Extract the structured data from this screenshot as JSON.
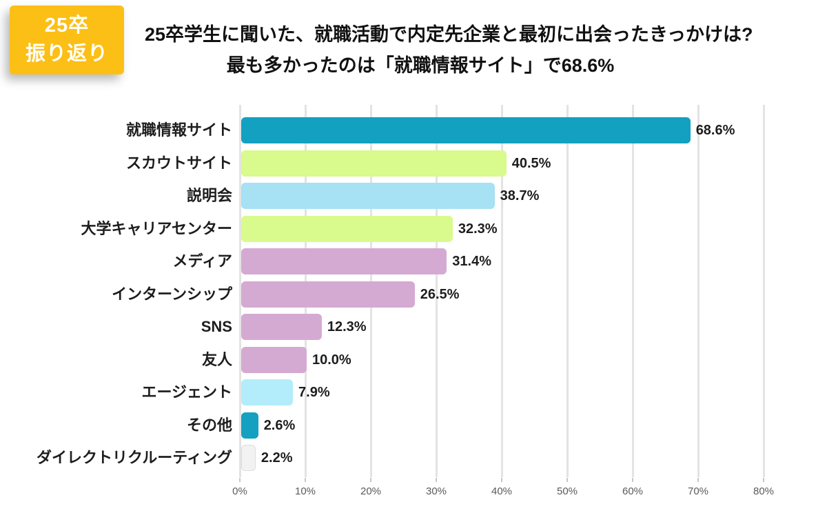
{
  "badge": {
    "line1": "25卒",
    "line2": "振り返り",
    "background_color": "#fcbf15",
    "text_color": "#ffffff"
  },
  "title": {
    "line1": "25卒学生に聞いた、就職活動で内定先企業と最初に出会ったきっかけは?",
    "line2": "最も多かったのは「就職情報サイト」で68.6%"
  },
  "colors": {
    "teal": "#13a0c1",
    "yellow_green": "#d9fa8c",
    "light_blue": "#a6e1f4",
    "pale_cyan": "#b3edfb",
    "mauve": "#d5aad2",
    "white_bar": "#f2f2f2",
    "gridline": "#e3e3e3",
    "tick": "#c8c8c8",
    "text_dark": "#1d1d1d"
  },
  "chart_data": {
    "type": "bar",
    "orientation": "horizontal",
    "title": "25卒学生に聞いた、就職活動で内定先企業と最初に出会ったきっかけは? 最も多かったのは「就職情報サイト」で68.6%",
    "categories": [
      "就職情報サイト",
      "スカウトサイト",
      "説明会",
      "大学キャリアセンター",
      "メディア",
      "インターンシップ",
      "SNS",
      "友人",
      "エージェント",
      "その他",
      "ダイレクトリクルーティング"
    ],
    "values": [
      68.6,
      40.5,
      38.7,
      32.3,
      31.4,
      26.5,
      12.3,
      10.0,
      7.9,
      2.6,
      2.2
    ],
    "value_labels": [
      "68.6%",
      "40.5%",
      "38.7%",
      "32.3%",
      "31.4%",
      "26.5%",
      "12.3%",
      "10.0%",
      "7.9%",
      "2.6%",
      "2.2%"
    ],
    "bar_colors": [
      "#13a0c1",
      "#d9fa8c",
      "#a6e1f4",
      "#d9fa8c",
      "#d5aad2",
      "#d5aad2",
      "#d5aad2",
      "#d5aad2",
      "#b3edfb",
      "#13a0c1",
      "#f2f2f2"
    ],
    "xlabel": "",
    "ylabel": "",
    "xlim": [
      0,
      80
    ],
    "x_ticks": [
      "0%",
      "10%",
      "20%",
      "30%",
      "40%",
      "50%",
      "60%",
      "70%",
      "80%"
    ],
    "x_tick_values": [
      0,
      10,
      20,
      30,
      40,
      50,
      60,
      70,
      80
    ],
    "grid": "vertical",
    "legend": "none"
  }
}
